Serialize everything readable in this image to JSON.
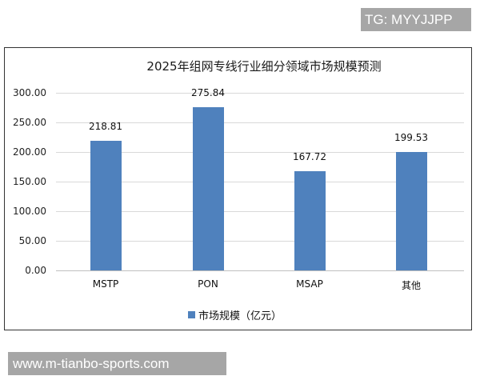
{
  "watermarks": {
    "top_right": "TG: MYYJJPP",
    "bottom_left": "www.m-tianbo-sports.com"
  },
  "chart_data": {
    "type": "bar",
    "title": "2025年组网专线行业细分领域市场规模预测",
    "categories": [
      "MSTP",
      "PON",
      "MSAP",
      "其他"
    ],
    "values": [
      218.81,
      275.84,
      167.72,
      199.53
    ],
    "value_labels": [
      "218.81",
      "275.84",
      "167.72",
      "199.53"
    ],
    "series": [
      {
        "name": "市场规模（亿元）",
        "values": [
          218.81,
          275.84,
          167.72,
          199.53
        ],
        "color": "#4f81bd"
      }
    ],
    "xlabel": "",
    "ylabel": "",
    "ylim": [
      0,
      300
    ],
    "yticks": [
      "300.00",
      "250.00",
      "200.00",
      "150.00",
      "100.00",
      "50.00",
      "0.00"
    ],
    "grid": true,
    "legend_position": "bottom",
    "legend": [
      "市场规模（亿元）"
    ]
  }
}
